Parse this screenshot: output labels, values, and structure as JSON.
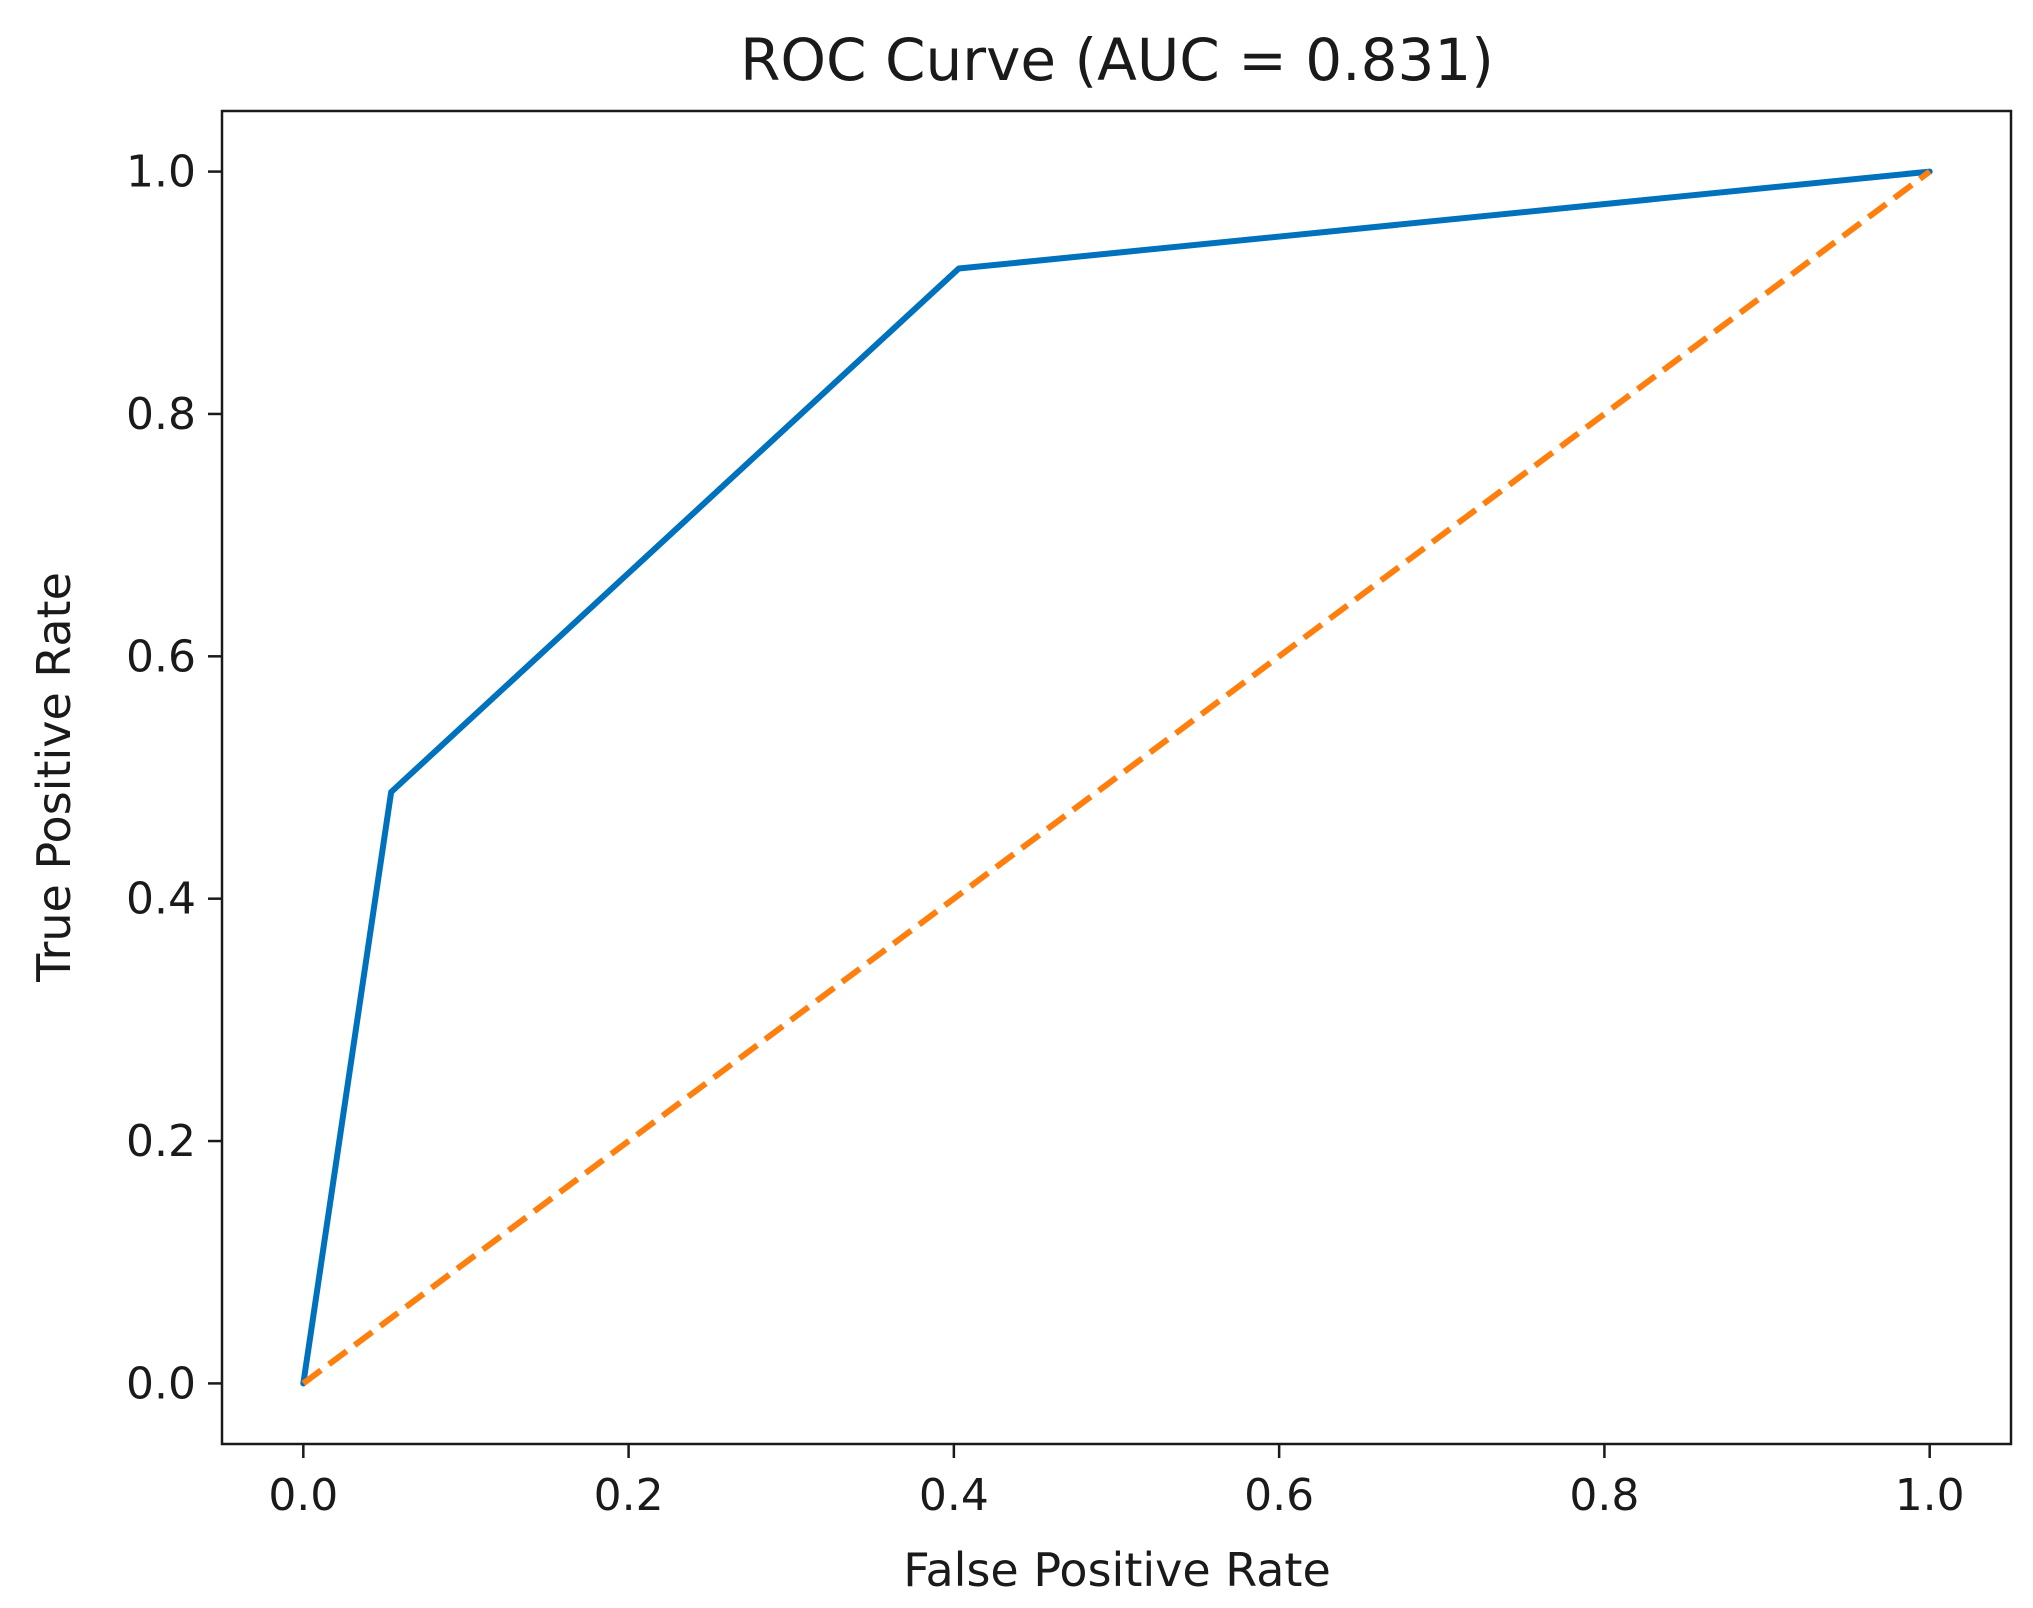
{
  "chart_data": {
    "type": "line",
    "title": "ROC Curve (AUC = 0.831)",
    "xlabel": "False Positive Rate",
    "ylabel": "True Positive Rate",
    "xlim": [
      -0.05,
      1.05
    ],
    "ylim": [
      -0.05,
      1.05
    ],
    "x_ticks": [
      0.0,
      0.2,
      0.4,
      0.6,
      0.8,
      1.0
    ],
    "x_tick_labels": [
      "0.0",
      "0.2",
      "0.4",
      "0.6",
      "0.8",
      "1.0"
    ],
    "y_ticks": [
      0.0,
      0.2,
      0.4,
      0.6,
      0.8,
      1.0
    ],
    "y_tick_labels": [
      "0.0",
      "0.2",
      "0.4",
      "0.6",
      "0.8",
      "1.0"
    ],
    "grid": false,
    "legend": "none",
    "series": [
      {
        "x": [
          0.0,
          0.054,
          0.403,
          1.0
        ],
        "y": [
          0.0,
          0.488,
          0.92,
          1.0
        ],
        "color": "#0072BD",
        "style": "solid"
      },
      {
        "x": [
          0.0,
          1.0
        ],
        "y": [
          0.0,
          1.0
        ],
        "color": "#FF7F0E",
        "style": "dashed"
      }
    ]
  }
}
